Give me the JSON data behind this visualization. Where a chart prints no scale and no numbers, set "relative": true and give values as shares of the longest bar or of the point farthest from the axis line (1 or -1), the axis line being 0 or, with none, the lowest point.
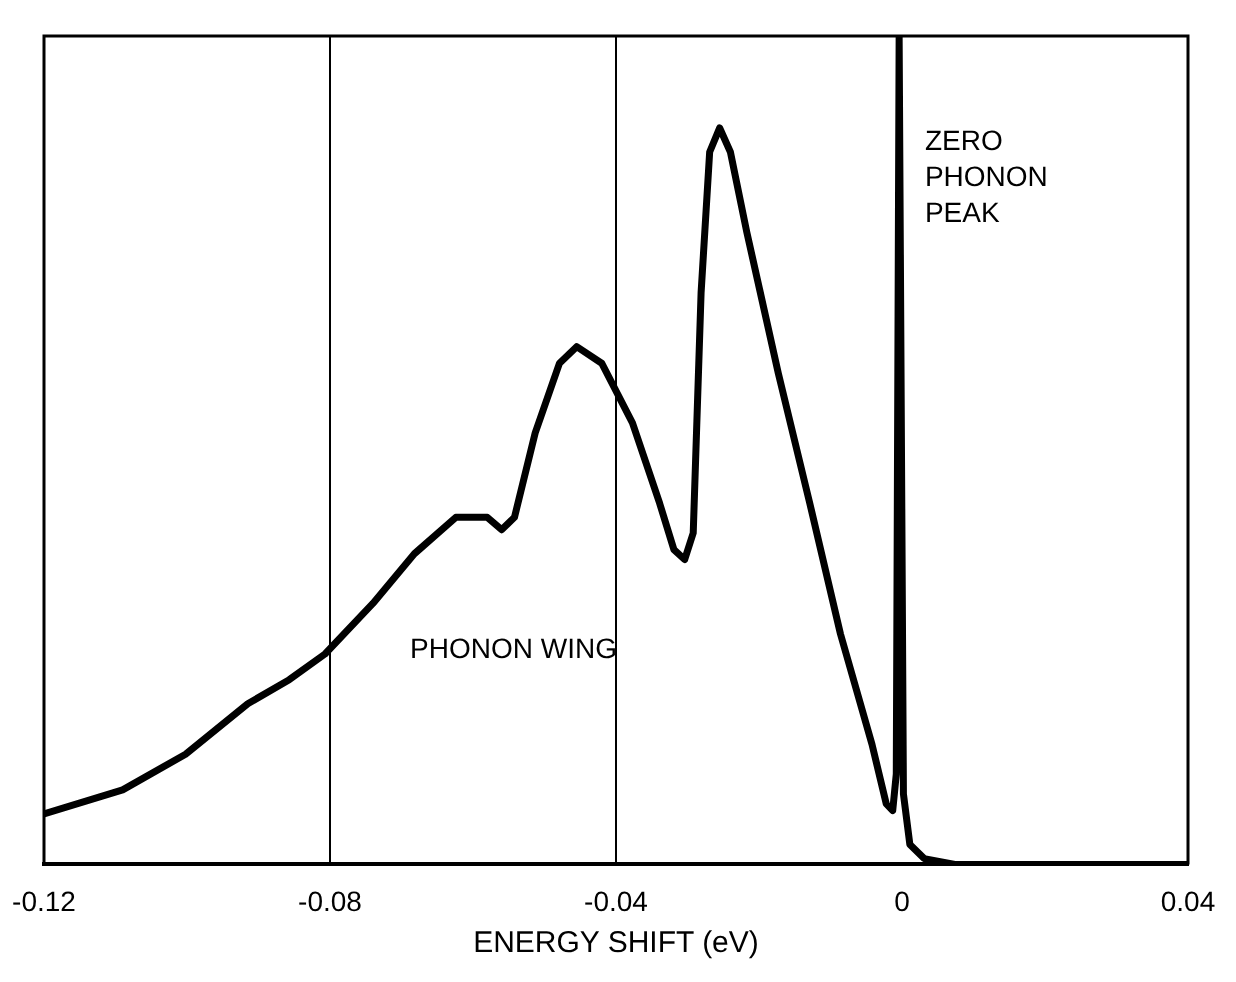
{
  "chart_data": {
    "type": "line",
    "xlabel": "ENERGY SHIFT (eV)",
    "relative": true,
    "xlim": [
      -0.12,
      0.04
    ],
    "xticks": [
      -0.12,
      -0.08,
      -0.04,
      0,
      0.04
    ],
    "grid": false,
    "legend": false,
    "marker": "none",
    "line_style": "solid",
    "ref_lines": [
      {
        "axis": "x",
        "value": -0.08,
        "color": "#000000"
      },
      {
        "axis": "x",
        "value": -0.04,
        "color": "#000000"
      }
    ],
    "annotations": [
      "ZERO PHONON PEAK",
      "PHONON WING"
    ],
    "series": [
      {
        "color": "#000000",
        "x": [
          -0.12,
          -0.109,
          -0.1002,
          -0.0915,
          -0.0857,
          -0.0807,
          -0.074,
          -0.0682,
          -0.0624,
          -0.058,
          -0.056,
          -0.0542,
          -0.0513,
          -0.0479,
          -0.0455,
          -0.042,
          -0.0377,
          -0.0339,
          -0.0319,
          -0.0304,
          -0.0292,
          -0.0281,
          -0.0269,
          -0.0255,
          -0.024,
          -0.0217,
          -0.0173,
          -0.0129,
          -0.0086,
          -0.0042,
          -0.0022,
          -0.0013,
          -0.0008,
          -0.0004,
          0.0002,
          0.0011,
          0.0031,
          0.0074,
          0.04
        ],
        "values": [
          0.061,
          0.09,
          0.133,
          0.194,
          0.223,
          0.254,
          0.315,
          0.375,
          0.419,
          0.419,
          0.404,
          0.419,
          0.521,
          0.605,
          0.625,
          0.605,
          0.533,
          0.436,
          0.38,
          0.368,
          0.4,
          0.69,
          0.86,
          0.889,
          0.86,
          0.763,
          0.593,
          0.436,
          0.278,
          0.145,
          0.073,
          0.065,
          0.109,
          1,
          0.085,
          0.024,
          0.007,
          0,
          0
        ]
      }
    ]
  }
}
